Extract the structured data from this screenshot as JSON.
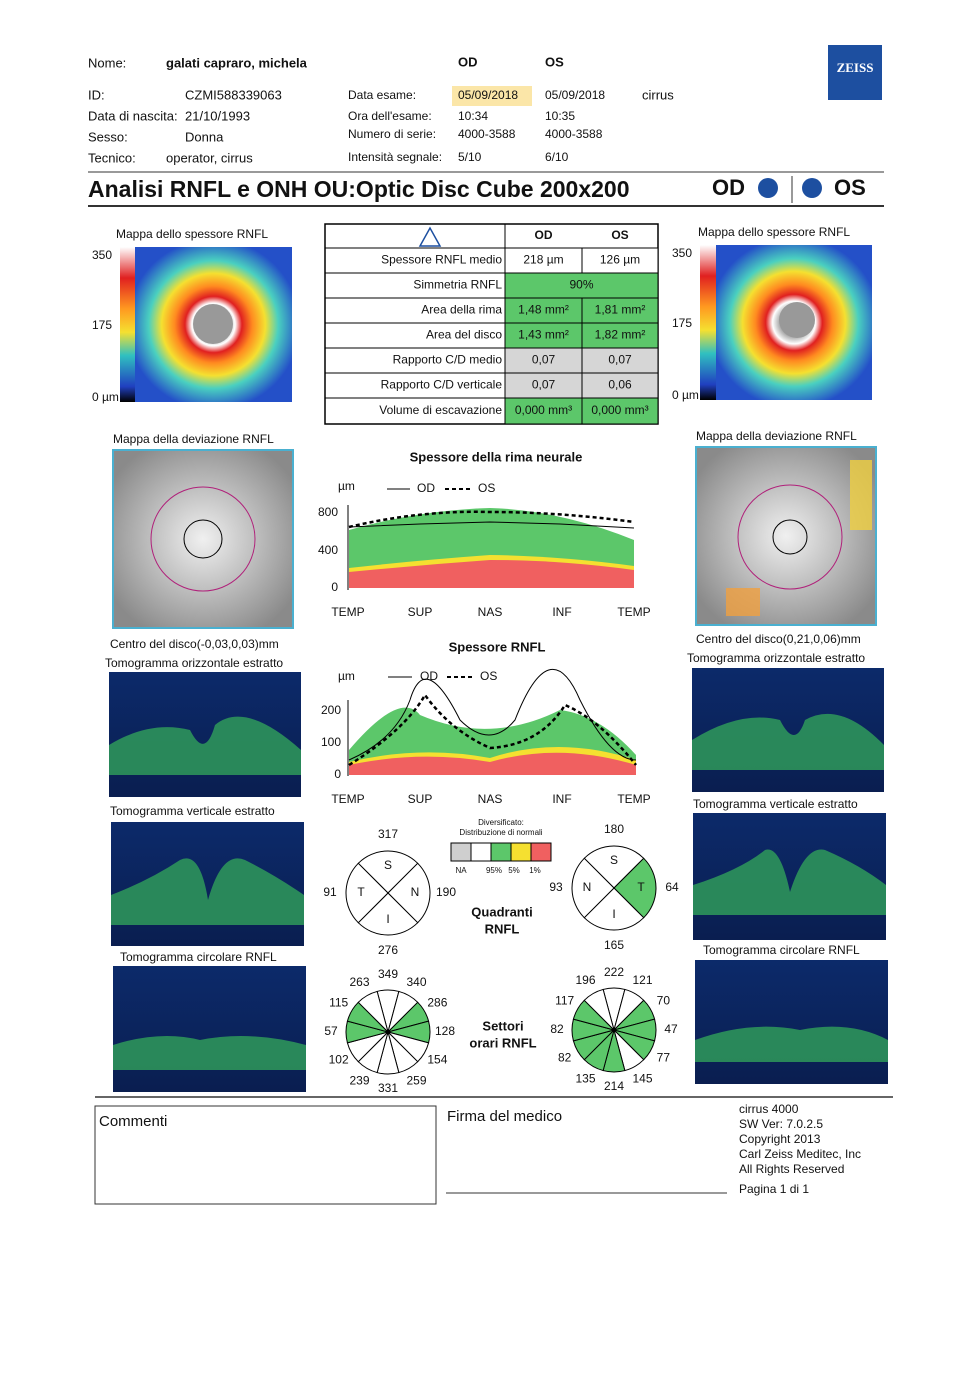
{
  "header": {
    "name_label": "Nome:",
    "name": "galati capraro, michela",
    "id_label": "ID:",
    "id": "CZMI588339063",
    "dob_label": "Data di nascita:",
    "dob": "21/10/1993",
    "sex_label": "Sesso:",
    "sex": "Donna",
    "tech_label": "Tecnico:",
    "tech": "operator, cirrus",
    "od": "OD",
    "os": "OS",
    "device": "cirrus",
    "logo": "ZEISS",
    "exam": [
      {
        "label": "Data esame:",
        "od": "05/09/2018",
        "os": "05/09/2018"
      },
      {
        "label": "Ora dell'esame:",
        "od": "10:34",
        "os": "10:35"
      },
      {
        "label": "Numero di serie:",
        "od": "4000-3588",
        "os": "4000-3588"
      },
      {
        "label": "Intensità segnale:",
        "od": "5/10",
        "os": "6/10"
      }
    ]
  },
  "title": {
    "text": "Analisi RNFL e ONH OU:Optic Disc Cube 200x200",
    "od": "OD",
    "os": "OS"
  },
  "thickness_maps": {
    "label": "Mappa dello spessore RNFL",
    "ticks": [
      "350",
      "175",
      "0 µm"
    ]
  },
  "table": {
    "header": [
      "OD",
      "OS"
    ],
    "rows": [
      {
        "label": "Spessore RNFL medio",
        "od": "218 µm",
        "os": "126 µm",
        "color": "#ffffff"
      },
      {
        "label": "Simmetria RNFL",
        "both": "90%",
        "color": "#5cc76a"
      },
      {
        "label": "Area della rima",
        "od": "1,48 mm²",
        "os": "1,81 mm²",
        "color": "#5cc76a"
      },
      {
        "label": "Area del disco",
        "od": "1,43 mm²",
        "os": "1,82 mm²",
        "color": "#5cc76a"
      },
      {
        "label": "Rapporto C/D medio",
        "od": "0,07",
        "os": "0,07",
        "color": "#d6d6d6"
      },
      {
        "label": "Rapporto C/D verticale",
        "od": "0,07",
        "os": "0,06",
        "color": "#d6d6d6"
      },
      {
        "label": "Volume di escavazione",
        "od": "0,000 mm³",
        "os": "0,000 mm³",
        "color": "#5cc76a"
      }
    ]
  },
  "deviation_maps": {
    "label": "Mappa della deviazione RNFL",
    "od_center": "Centro del disco(-0,03,0,03)mm",
    "os_center": "Centro del disco(0,21,0,06)mm"
  },
  "tomograms": {
    "horizontal": "Tomogramma orizzontale estratto",
    "vertical": "Tomogramma verticale estratto",
    "circular": "Tomogramma circolare RNFL"
  },
  "rim_chart": {
    "title": "Spessore della rima neurale",
    "unit": "µm",
    "legend": [
      "OD",
      "OS"
    ],
    "yticks": [
      "800",
      "400",
      "0"
    ],
    "xlabels": [
      "TEMP",
      "SUP",
      "NAS",
      "INF",
      "TEMP"
    ]
  },
  "rnfl_chart": {
    "title": "Spessore RNFL",
    "unit": "µm",
    "legend": [
      "OD",
      "OS"
    ],
    "yticks": [
      "200",
      "100",
      "0"
    ],
    "xlabels": [
      "TEMP",
      "SUP",
      "NAS",
      "INF",
      "TEMP"
    ]
  },
  "normative_legend": {
    "title": "Diversificato:",
    "subtitle": "Distribuzione di normali",
    "labels": [
      "NA",
      "95%",
      "5%",
      "1%"
    ]
  },
  "quadrants": {
    "title": [
      "Quadranti",
      "RNFL"
    ],
    "od": [
      {
        "label": "S",
        "value": 317,
        "color": "#ffffff"
      },
      {
        "label": "N",
        "value": 190,
        "color": "#ffffff"
      },
      {
        "label": "I",
        "value": 276,
        "color": "#ffffff"
      },
      {
        "label": "T",
        "value": 91,
        "color": "#ffffff"
      }
    ],
    "os": [
      {
        "label": "S",
        "value": 180,
        "color": "#ffffff"
      },
      {
        "label": "T",
        "value": 64,
        "color": "#5cc76a"
      },
      {
        "label": "I",
        "value": 165,
        "color": "#ffffff"
      },
      {
        "label": "N",
        "value": 93,
        "color": "#ffffff"
      }
    ]
  },
  "clock_hours": {
    "title": [
      "Settori",
      "orari RNFL"
    ],
    "od": {
      "values": [
        349,
        340,
        286,
        128,
        154,
        259,
        331,
        239,
        102,
        57,
        115,
        263
      ],
      "colors": [
        "#ffffff",
        "#ffffff",
        "#5cc76a",
        "#5cc76a",
        "#ffffff",
        "#ffffff",
        "#ffffff",
        "#ffffff",
        "#ffffff",
        "#5cc76a",
        "#5cc76a",
        "#ffffff"
      ]
    },
    "os": {
      "values": [
        222,
        121,
        70,
        47,
        77,
        145,
        214,
        135,
        82,
        82,
        117,
        196
      ],
      "colors": [
        "#ffffff",
        "#ffffff",
        "#5cc76a",
        "#5cc76a",
        "#5cc76a",
        "#ffffff",
        "#5cc76a",
        "#5cc76a",
        "#5cc76a",
        "#5cc76a",
        "#5cc76a",
        "#ffffff"
      ]
    }
  },
  "footer": {
    "comments": "Commenti",
    "signature": "Firma del medico",
    "info": [
      "cirrus 4000",
      "SW Ver: 7.0.2.5",
      "Copyright 2013",
      "Carl Zeiss Meditec, Inc",
      "All Rights Reserved"
    ],
    "page": "Pagina 1 di 1"
  }
}
